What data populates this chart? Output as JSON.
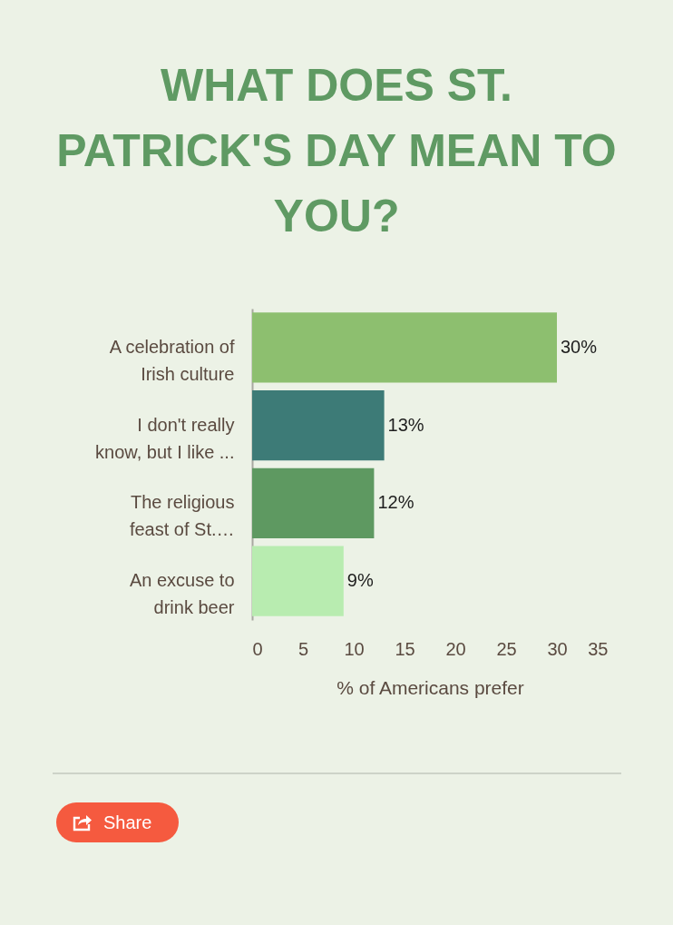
{
  "chart_data": {
    "type": "bar",
    "orientation": "horizontal",
    "title": "WHAT DOES ST. PATRICK'S DAY MEAN TO YOU?",
    "xlabel": "% of Americans prefer",
    "categories": [
      "A celebration of Irish culture",
      "I don't really know, but I like ...",
      "The religious feast of St.…",
      "An excuse to drink beer"
    ],
    "values": [
      30,
      13,
      12,
      9
    ],
    "colors": [
      "#8dbf6f",
      "#3d7b77",
      "#5e9961",
      "#b8ecb0"
    ],
    "value_labels": [
      "30%",
      "13%",
      "12%",
      "9%"
    ],
    "xlim": [
      0,
      35
    ],
    "xticks": [
      0,
      5,
      10,
      15,
      20,
      25,
      30,
      35
    ],
    "annotations": [
      "Share"
    ]
  }
}
